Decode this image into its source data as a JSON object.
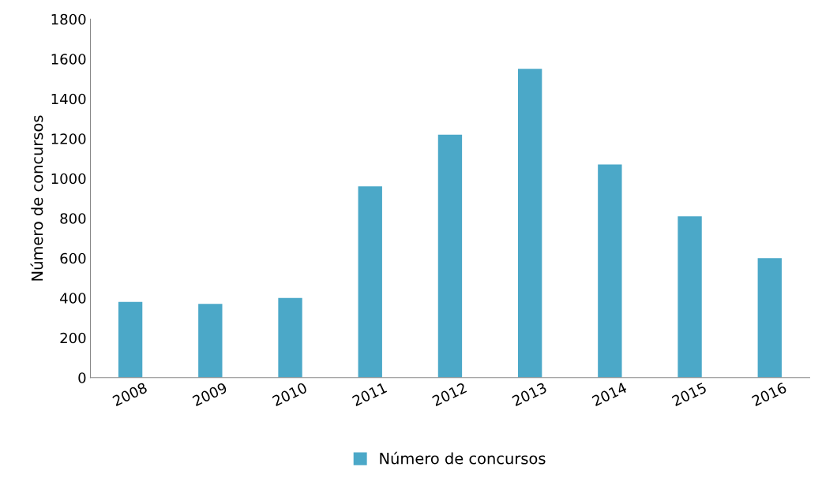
{
  "chart_data": {
    "type": "bar",
    "ylabel": "Número de concursos",
    "categories": [
      "2008",
      "2009",
      "2010",
      "2011",
      "2012",
      "2013",
      "2014",
      "2015",
      "2016"
    ],
    "series": [
      {
        "name": "Número de concursos",
        "color": "#4ba8c8",
        "values": [
          380,
          370,
          400,
          960,
          1220,
          1550,
          1070,
          810,
          600
        ]
      }
    ],
    "ylim": [
      0,
      1800
    ],
    "yticks": [
      0,
      200,
      400,
      600,
      800,
      1000,
      1200,
      1400,
      1600,
      1800
    ],
    "grid": false,
    "legend": "bottom"
  }
}
